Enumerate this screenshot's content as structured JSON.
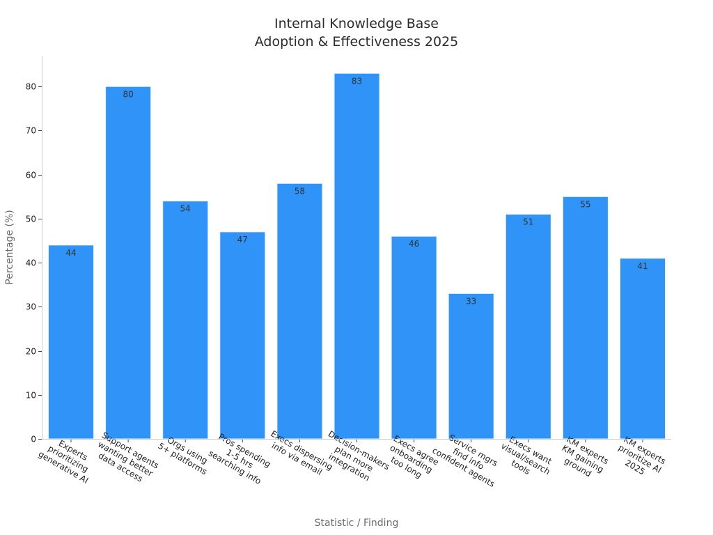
{
  "chart_data": {
    "type": "bar",
    "title_lines": [
      "Internal Knowledge Base",
      "Adoption & Effectiveness 2025"
    ],
    "xlabel": "Statistic / Finding",
    "ylabel": "Percentage (%)",
    "ylim": [
      0,
      87
    ],
    "yticks": [
      0,
      10,
      20,
      30,
      40,
      50,
      60,
      70,
      80
    ],
    "grid": false,
    "bar_color": "#2f93f7",
    "categories": [
      [
        "Experts",
        "prioritizing",
        "generative AI"
      ],
      [
        "Support agents",
        "wanting better",
        "data access"
      ],
      [
        "Orgs using",
        "5+ platforms"
      ],
      [
        "Pros spending",
        "1-5 hrs",
        "searching info"
      ],
      [
        "Execs dispersing",
        "info via email"
      ],
      [
        "Decision-makers",
        "plan more",
        "integration"
      ],
      [
        "Execs agree",
        "onboarding",
        "too long"
      ],
      [
        "Service mgrs",
        "find info",
        "confident agents"
      ],
      [
        "Execs want",
        "visual/search",
        "tools"
      ],
      [
        "KM experts",
        "KM gaining",
        "ground"
      ],
      [
        "KM experts",
        "prioritize AI",
        "2025"
      ]
    ],
    "values": [
      44,
      80,
      54,
      47,
      58,
      83,
      46,
      33,
      51,
      55,
      41
    ]
  }
}
